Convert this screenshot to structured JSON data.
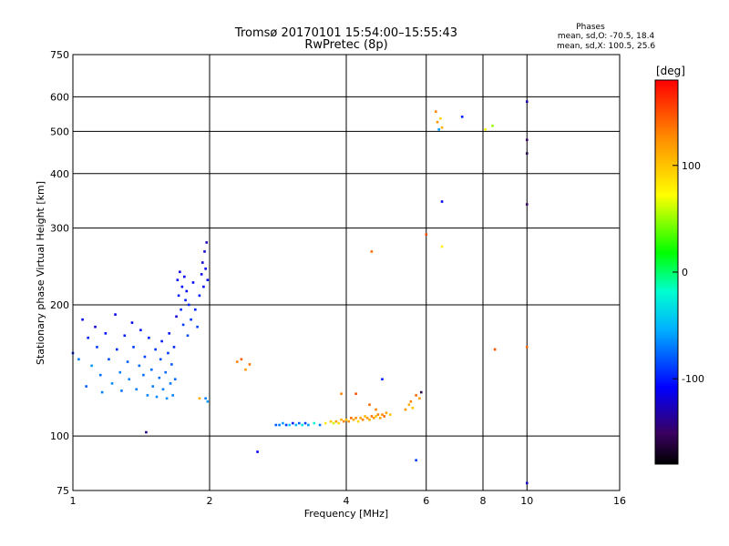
{
  "chart_data": {
    "type": "scatter",
    "title": "Tromsø 20170101 15:54:00–15:55:43",
    "subtitle": "RwPretec (8p)",
    "xlabel": "Frequency [MHz]",
    "ylabel": "Stationary phase Virtual Height [km]",
    "x_scale": "log",
    "y_scale": "log",
    "xlim": [
      1,
      16
    ],
    "ylim": [
      75,
      750
    ],
    "x_ticks": [
      1,
      2,
      4,
      6,
      8,
      10,
      16
    ],
    "y_ticks": [
      75,
      100,
      200,
      300,
      400,
      500,
      600,
      750
    ],
    "grid": true,
    "phases": {
      "title": "Phases",
      "line_o": "mean, sd,O: -70.5, 18.4",
      "line_x": "mean, sd,X: 100.5, 25.6"
    },
    "colorbar": {
      "label": "[deg]",
      "ticks": [
        100,
        0,
        -100
      ],
      "range": [
        -180,
        180
      ]
    },
    "points": [
      [
        1.0,
        155,
        -95
      ],
      [
        1.03,
        150,
        -70
      ],
      [
        1.05,
        185,
        -110
      ],
      [
        1.07,
        130,
        -80
      ],
      [
        1.08,
        168,
        -100
      ],
      [
        1.1,
        145,
        -60
      ],
      [
        1.12,
        178,
        -120
      ],
      [
        1.13,
        160,
        -90
      ],
      [
        1.15,
        138,
        -75
      ],
      [
        1.16,
        126,
        -70
      ],
      [
        1.18,
        172,
        -105
      ],
      [
        1.2,
        150,
        -85
      ],
      [
        1.22,
        132,
        -65
      ],
      [
        1.24,
        190,
        -115
      ],
      [
        1.25,
        158,
        -95
      ],
      [
        1.27,
        140,
        -70
      ],
      [
        1.28,
        127,
        -72
      ],
      [
        1.3,
        170,
        -100
      ],
      [
        1.32,
        148,
        -80
      ],
      [
        1.33,
        135,
        -68
      ],
      [
        1.35,
        182,
        -110
      ],
      [
        1.36,
        160,
        -90
      ],
      [
        1.38,
        128,
        -70
      ],
      [
        1.4,
        145,
        -75
      ],
      [
        1.41,
        175,
        -105
      ],
      [
        1.43,
        138,
        -72
      ],
      [
        1.44,
        152,
        -88
      ],
      [
        1.46,
        124,
        -68
      ],
      [
        1.47,
        168,
        -98
      ],
      [
        1.49,
        142,
        -76
      ],
      [
        1.5,
        130,
        -70
      ],
      [
        1.52,
        158,
        -92
      ],
      [
        1.53,
        123,
        -66
      ],
      [
        1.55,
        136,
        -74
      ],
      [
        1.56,
        150,
        -84
      ],
      [
        1.57,
        165,
        -100
      ],
      [
        1.58,
        128,
        -70
      ],
      [
        1.6,
        140,
        -76
      ],
      [
        1.61,
        122,
        -64
      ],
      [
        1.62,
        155,
        -90
      ],
      [
        1.63,
        172,
        -105
      ],
      [
        1.64,
        132,
        -72
      ],
      [
        1.65,
        146,
        -80
      ],
      [
        1.66,
        124,
        -68
      ],
      [
        1.67,
        160,
        -95
      ],
      [
        1.68,
        135,
        -74
      ],
      [
        1.69,
        188,
        -120
      ],
      [
        1.7,
        228,
        -110
      ],
      [
        1.71,
        210,
        -100
      ],
      [
        1.72,
        238,
        -115
      ],
      [
        1.73,
        195,
        -95
      ],
      [
        1.74,
        220,
        -105
      ],
      [
        1.75,
        180,
        -90
      ],
      [
        1.76,
        232,
        -112
      ],
      [
        1.77,
        205,
        -100
      ],
      [
        1.78,
        215,
        -108
      ],
      [
        1.79,
        170,
        -85
      ],
      [
        1.8,
        200,
        -98
      ],
      [
        1.82,
        185,
        -92
      ],
      [
        1.84,
        225,
        -110
      ],
      [
        1.86,
        195,
        -96
      ],
      [
        1.88,
        178,
        -88
      ],
      [
        1.9,
        210,
        -102
      ],
      [
        1.92,
        235,
        -115
      ],
      [
        1.93,
        250,
        -118
      ],
      [
        1.94,
        220,
        -105
      ],
      [
        1.95,
        265,
        -120
      ],
      [
        1.96,
        242,
        -112
      ],
      [
        1.97,
        278,
        -125
      ],
      [
        1.98,
        228,
        -108
      ],
      [
        1.96,
        122,
        -70
      ],
      [
        1.98,
        120,
        -60
      ],
      [
        1.45,
        102,
        -140
      ],
      [
        1.9,
        122,
        110
      ],
      [
        2.3,
        148,
        130
      ],
      [
        2.35,
        150,
        145
      ],
      [
        2.4,
        142,
        120
      ],
      [
        2.45,
        146,
        135
      ],
      [
        2.55,
        92,
        -110
      ],
      [
        2.8,
        106,
        -80
      ],
      [
        2.85,
        106,
        -70
      ],
      [
        2.9,
        107,
        -60
      ],
      [
        2.95,
        106,
        -90
      ],
      [
        3.0,
        106,
        -40
      ],
      [
        3.05,
        107,
        -100
      ],
      [
        3.1,
        106,
        -50
      ],
      [
        3.15,
        107,
        -80
      ],
      [
        3.2,
        106,
        -30
      ],
      [
        3.25,
        107,
        -90
      ],
      [
        3.3,
        106,
        -60
      ],
      [
        3.4,
        107,
        -20
      ],
      [
        3.5,
        106,
        -70
      ],
      [
        3.6,
        107,
        80
      ],
      [
        3.7,
        108,
        100
      ],
      [
        3.75,
        107,
        60
      ],
      [
        3.8,
        108,
        120
      ],
      [
        3.85,
        107,
        90
      ],
      [
        3.9,
        109,
        110
      ],
      [
        3.95,
        108,
        130
      ],
      [
        4.0,
        109,
        100
      ],
      [
        4.05,
        108,
        120
      ],
      [
        4.1,
        110,
        140
      ],
      [
        4.15,
        109,
        110
      ],
      [
        4.2,
        110,
        125
      ],
      [
        4.25,
        108,
        90
      ],
      [
        4.3,
        110,
        115
      ],
      [
        4.35,
        109,
        130
      ],
      [
        4.4,
        111,
        105
      ],
      [
        4.45,
        110,
        120
      ],
      [
        4.5,
        109,
        110
      ],
      [
        4.55,
        111,
        135
      ],
      [
        4.6,
        110,
        120
      ],
      [
        4.65,
        111,
        100
      ],
      [
        4.7,
        112,
        130
      ],
      [
        4.75,
        110,
        115
      ],
      [
        4.8,
        112,
        125
      ],
      [
        4.85,
        111,
        140
      ],
      [
        4.9,
        113,
        115
      ],
      [
        5.0,
        112,
        100
      ],
      [
        3.9,
        125,
        130
      ],
      [
        4.2,
        125,
        150
      ],
      [
        4.5,
        118,
        140
      ],
      [
        4.65,
        115,
        130
      ],
      [
        4.8,
        135,
        -100
      ],
      [
        5.4,
        115,
        120
      ],
      [
        5.5,
        118,
        110
      ],
      [
        5.55,
        120,
        130
      ],
      [
        5.6,
        116,
        100
      ],
      [
        5.7,
        124,
        140
      ],
      [
        5.8,
        122,
        120
      ],
      [
        5.85,
        126,
        -160
      ],
      [
        5.7,
        88,
        -90
      ],
      [
        4.55,
        265,
        140
      ],
      [
        6.0,
        290,
        150
      ],
      [
        6.3,
        555,
        130
      ],
      [
        6.35,
        525,
        120
      ],
      [
        6.4,
        505,
        -60
      ],
      [
        6.5,
        510,
        110
      ],
      [
        6.45,
        535,
        90
      ],
      [
        6.5,
        345,
        -110
      ],
      [
        6.5,
        272,
        80
      ],
      [
        7.2,
        540,
        -100
      ],
      [
        8.1,
        505,
        70
      ],
      [
        8.4,
        515,
        50
      ],
      [
        8.5,
        158,
        150
      ],
      [
        10.0,
        585,
        -130
      ],
      [
        10.0,
        478,
        -150
      ],
      [
        10.0,
        445,
        -160
      ],
      [
        10.0,
        340,
        -150
      ],
      [
        10.0,
        160,
        140
      ],
      [
        10.0,
        78,
        -120
      ]
    ]
  }
}
